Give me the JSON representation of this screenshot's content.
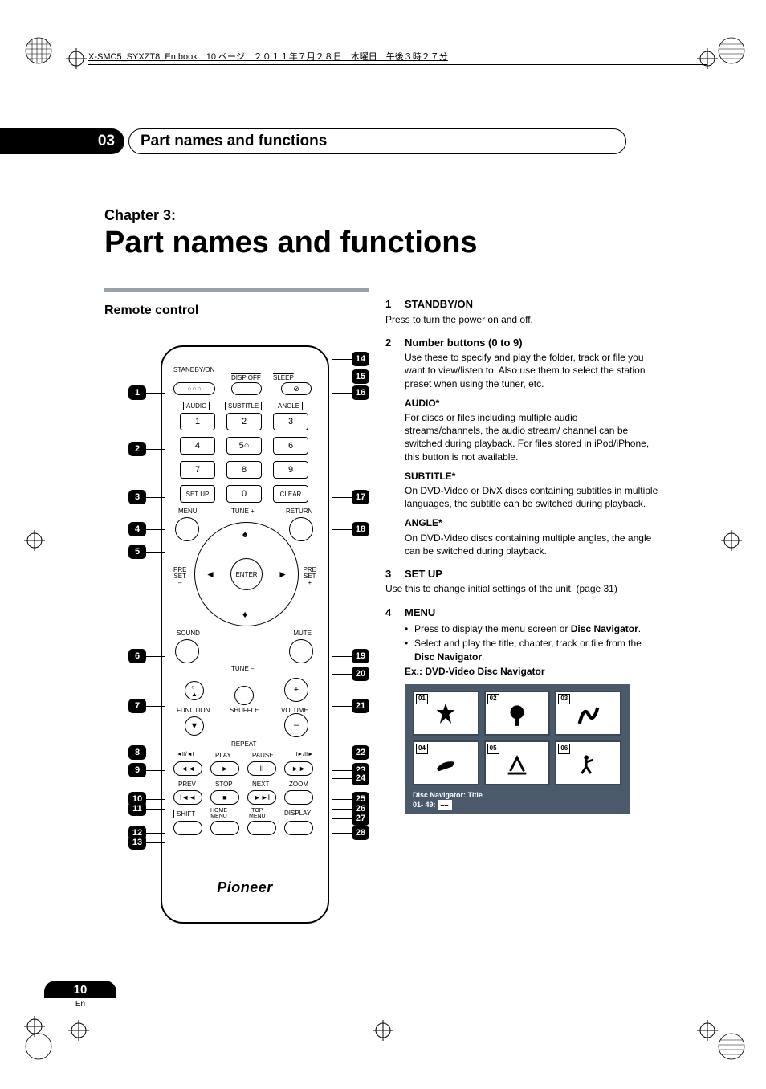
{
  "meta_header": "X-SMC5_SYXZT8_En.book　10 ページ　２０１１年７月２８日　木曜日　午後３時２７分",
  "chapter_number_badge": "03",
  "chapter_bar_title": "Part names and functions",
  "chapter_label": "Chapter 3:",
  "chapter_title": "Part names and functions",
  "section_title": "Remote control",
  "remote": {
    "logo": "Pioneer",
    "left_badges": [
      "1",
      "2",
      "3",
      "4",
      "5",
      "6",
      "7",
      "8",
      "9",
      "10",
      "11",
      "12",
      "13"
    ],
    "right_badges": [
      "14",
      "15",
      "16",
      "17",
      "18",
      "19",
      "20",
      "21",
      "22",
      "23",
      "24",
      "25",
      "26",
      "27",
      "28"
    ],
    "top_labels": {
      "standby": "STANDBY/ON",
      "dispoff": "DISP OFF",
      "sleep": "SLEEP"
    },
    "row_audio": {
      "audio": "AUDIO",
      "subtitle": "SUBTITLE",
      "angle": "ANGLE"
    },
    "row_setup": {
      "setup": "SET UP",
      "clear": "CLEAR"
    },
    "row_menu": {
      "menu": "MENU",
      "tuneplus": "TUNE +",
      "return": "RETURN"
    },
    "dpad": {
      "enter": "ENTER",
      "preset_minus": "PRE\nSET\n–",
      "preset_plus": "PRE\nSET\n+"
    },
    "row_sound": {
      "sound": "SOUND",
      "mute": "MUTE"
    },
    "tune_minus": "TUNE –",
    "row_function": {
      "function": "FUNCTION",
      "shuffle": "SHUFFLE",
      "volume": "VOLUME"
    },
    "repeat": "REPEAT",
    "row_play": {
      "play": "PLAY",
      "pause": "PAUSE"
    },
    "row_prev": {
      "prev": "PREV",
      "stop": "STOP",
      "next": "NEXT",
      "zoom": "ZOOM"
    },
    "row_shift": {
      "shift": "SHIFT",
      "home": "HOME\nMENU",
      "top": "TOP\nMENU",
      "display": "DISPLAY"
    },
    "numpad": [
      "1",
      "2",
      "3",
      "4",
      "5",
      "6",
      "7",
      "8",
      "9",
      "0"
    ]
  },
  "descriptions": {
    "i1": {
      "num": "1",
      "title": "STANDBY/ON",
      "body": "Press to turn the power on and off."
    },
    "i2": {
      "num": "2",
      "title": "Number buttons (0 to 9)",
      "body": "Use these to specify and play the folder, track or file you want to view/listen to. Also use them to select the station preset when using the tuner, etc."
    },
    "audio": {
      "title": "AUDIO*",
      "body": "For discs or files including multiple audio streams/channels, the audio stream/ channel can be switched during playback. For files stored in iPod/iPhone, this button is not available."
    },
    "subtitle": {
      "title": "SUBTITLE*",
      "body": "On DVD-Video or DivX discs containing subtitles in multiple languages, the subtitle can be switched during playback."
    },
    "angle": {
      "title": "ANGLE*",
      "body": "On DVD-Video discs containing multiple angles, the angle can be switched during playback."
    },
    "i3": {
      "num": "3",
      "title": "SET UP",
      "body": "Use this to change initial settings of the unit. (page 31)"
    },
    "i4": {
      "num": "4",
      "title": "MENU",
      "bullets": [
        "Press to display the menu screen or <b>Disc Navigator</b>.",
        "Select and play the title, chapter, track or file from the <b>Disc Navigator</b>."
      ],
      "ex": "Ex.: DVD-Video Disc Navigator"
    }
  },
  "nav": {
    "cells": [
      "01",
      "02",
      "03",
      "04",
      "05",
      "06"
    ],
    "footer_label": "Disc Navigator: Title",
    "footer_range": "01- 49:",
    "bg_color": "#526170",
    "cell_border": "#3d4b58"
  },
  "page": {
    "number": "10",
    "lang": "En"
  }
}
